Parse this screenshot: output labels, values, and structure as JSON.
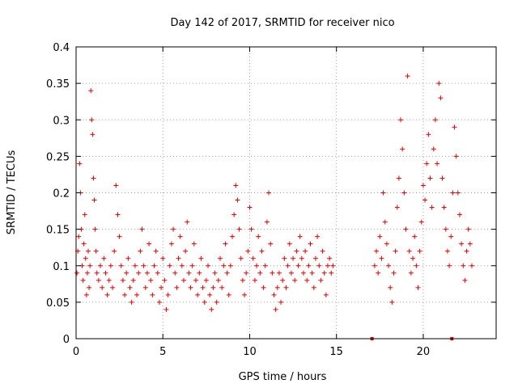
{
  "chart_data": {
    "type": "scatter",
    "title": "Day 142 of 2017, SRMTID for receiver nico",
    "xlabel": "GPS time / hours",
    "ylabel": "SRMTID / TECUs",
    "xlim": [
      0,
      24.2
    ],
    "ylim": [
      0,
      0.4
    ],
    "grid": true,
    "marker": "+",
    "color": "#e00000",
    "x_ticks": [
      0,
      5,
      10,
      15,
      20
    ],
    "x_tick_labels": [
      "0",
      "5",
      "10",
      "15",
      "20"
    ],
    "y_ticks": [
      0,
      0.05,
      0.1,
      0.15,
      0.2,
      0.25,
      0.3,
      0.35,
      0.4
    ],
    "y_tick_labels": [
      "0",
      "0.05",
      "0.1",
      "0.15",
      "0.2",
      "0.25",
      "0.3",
      "0.35",
      "0.4"
    ],
    "zero_markers_x": [
      17.05,
      21.65
    ],
    "series": [
      {
        "name": "SRMTID",
        "points": [
          [
            0.05,
            0.09
          ],
          [
            0.1,
            0.12
          ],
          [
            0.15,
            0.14
          ],
          [
            0.2,
            0.24
          ],
          [
            0.25,
            0.2
          ],
          [
            0.3,
            0.15
          ],
          [
            0.35,
            0.1
          ],
          [
            0.4,
            0.08
          ],
          [
            0.45,
            0.13
          ],
          [
            0.5,
            0.17
          ],
          [
            0.55,
            0.11
          ],
          [
            0.6,
            0.06
          ],
          [
            0.65,
            0.09
          ],
          [
            0.7,
            0.12
          ],
          [
            0.75,
            0.07
          ],
          [
            0.8,
            0.1
          ],
          [
            0.85,
            0.34
          ],
          [
            0.9,
            0.3
          ],
          [
            0.95,
            0.28
          ],
          [
            1.0,
            0.22
          ],
          [
            1.05,
            0.19
          ],
          [
            1.1,
            0.15
          ],
          [
            1.15,
            0.12
          ],
          [
            1.2,
            0.09
          ],
          [
            1.3,
            0.08
          ],
          [
            1.4,
            0.1
          ],
          [
            1.5,
            0.07
          ],
          [
            1.6,
            0.11
          ],
          [
            1.7,
            0.09
          ],
          [
            1.8,
            0.06
          ],
          [
            1.9,
            0.08
          ],
          [
            2.0,
            0.1
          ],
          [
            2.1,
            0.07
          ],
          [
            2.2,
            0.12
          ],
          [
            2.3,
            0.21
          ],
          [
            2.4,
            0.17
          ],
          [
            2.5,
            0.14
          ],
          [
            2.6,
            0.1
          ],
          [
            2.7,
            0.08
          ],
          [
            2.8,
            0.06
          ],
          [
            2.9,
            0.09
          ],
          [
            3.0,
            0.11
          ],
          [
            3.1,
            0.07
          ],
          [
            3.2,
            0.05
          ],
          [
            3.3,
            0.08
          ],
          [
            3.4,
            0.1
          ],
          [
            3.5,
            0.06
          ],
          [
            3.6,
            0.09
          ],
          [
            3.7,
            0.12
          ],
          [
            3.8,
            0.15
          ],
          [
            3.9,
            0.1
          ],
          [
            4.0,
            0.07
          ],
          [
            4.1,
            0.09
          ],
          [
            4.2,
            0.13
          ],
          [
            4.3,
            0.08
          ],
          [
            4.4,
            0.06
          ],
          [
            4.5,
            0.1
          ],
          [
            4.6,
            0.12
          ],
          [
            4.7,
            0.09
          ],
          [
            4.8,
            0.05
          ],
          [
            4.9,
            0.07
          ],
          [
            5.0,
            0.11
          ],
          [
            5.1,
            0.08
          ],
          [
            5.2,
            0.04
          ],
          [
            5.3,
            0.06
          ],
          [
            5.4,
            0.1
          ],
          [
            5.5,
            0.13
          ],
          [
            5.6,
            0.15
          ],
          [
            5.7,
            0.09
          ],
          [
            5.8,
            0.07
          ],
          [
            5.9,
            0.11
          ],
          [
            6.0,
            0.14
          ],
          [
            6.1,
            0.1
          ],
          [
            6.2,
            0.08
          ],
          [
            6.3,
            0.12
          ],
          [
            6.4,
            0.16
          ],
          [
            6.5,
            0.09
          ],
          [
            6.6,
            0.07
          ],
          [
            6.7,
            0.1
          ],
          [
            6.8,
            0.13
          ],
          [
            6.9,
            0.08
          ],
          [
            7.0,
            0.06
          ],
          [
            7.1,
            0.09
          ],
          [
            7.2,
            0.11
          ],
          [
            7.3,
            0.07
          ],
          [
            7.4,
            0.05
          ],
          [
            7.5,
            0.08
          ],
          [
            7.6,
            0.1
          ],
          [
            7.7,
            0.06
          ],
          [
            7.8,
            0.04
          ],
          [
            7.9,
            0.07
          ],
          [
            8.0,
            0.09
          ],
          [
            8.1,
            0.05
          ],
          [
            8.2,
            0.08
          ],
          [
            8.3,
            0.11
          ],
          [
            8.4,
            0.07
          ],
          [
            8.5,
            0.1
          ],
          [
            8.6,
            0.13
          ],
          [
            8.7,
            0.09
          ],
          [
            8.8,
            0.06
          ],
          [
            8.9,
            0.1
          ],
          [
            9.0,
            0.14
          ],
          [
            9.1,
            0.17
          ],
          [
            9.2,
            0.21
          ],
          [
            9.3,
            0.19
          ],
          [
            9.4,
            0.15
          ],
          [
            9.5,
            0.11
          ],
          [
            9.6,
            0.08
          ],
          [
            9.7,
            0.06
          ],
          [
            9.8,
            0.09
          ],
          [
            9.9,
            0.12
          ],
          [
            10.0,
            0.18
          ],
          [
            10.1,
            0.15
          ],
          [
            10.2,
            0.11
          ],
          [
            10.3,
            0.08
          ],
          [
            10.4,
            0.1
          ],
          [
            10.5,
            0.14
          ],
          [
            10.6,
            0.09
          ],
          [
            10.7,
            0.12
          ],
          [
            10.8,
            0.07
          ],
          [
            10.9,
            0.1
          ],
          [
            11.0,
            0.16
          ],
          [
            11.1,
            0.2
          ],
          [
            11.2,
            0.13
          ],
          [
            11.3,
            0.09
          ],
          [
            11.4,
            0.06
          ],
          [
            11.5,
            0.04
          ],
          [
            11.6,
            0.07
          ],
          [
            11.7,
            0.09
          ],
          [
            11.8,
            0.05
          ],
          [
            11.9,
            0.08
          ],
          [
            12.0,
            0.11
          ],
          [
            12.1,
            0.07
          ],
          [
            12.2,
            0.1
          ],
          [
            12.3,
            0.13
          ],
          [
            12.4,
            0.09
          ],
          [
            12.5,
            0.11
          ],
          [
            12.6,
            0.08
          ],
          [
            12.7,
            0.12
          ],
          [
            12.8,
            0.1
          ],
          [
            12.9,
            0.14
          ],
          [
            13.0,
            0.11
          ],
          [
            13.1,
            0.09
          ],
          [
            13.2,
            0.12
          ],
          [
            13.3,
            0.08
          ],
          [
            13.4,
            0.1
          ],
          [
            13.5,
            0.13
          ],
          [
            13.6,
            0.09
          ],
          [
            13.7,
            0.07
          ],
          [
            13.8,
            0.11
          ],
          [
            13.9,
            0.14
          ],
          [
            14.0,
            0.1
          ],
          [
            14.1,
            0.08
          ],
          [
            14.2,
            0.12
          ],
          [
            14.3,
            0.09
          ],
          [
            14.4,
            0.06
          ],
          [
            14.5,
            0.1
          ],
          [
            14.6,
            0.11
          ],
          [
            14.7,
            0.09
          ],
          [
            14.8,
            0.1
          ],
          [
            17.2,
            0.1
          ],
          [
            17.3,
            0.12
          ],
          [
            17.4,
            0.09
          ],
          [
            17.5,
            0.14
          ],
          [
            17.6,
            0.11
          ],
          [
            17.7,
            0.2
          ],
          [
            17.8,
            0.16
          ],
          [
            17.9,
            0.13
          ],
          [
            18.0,
            0.1
          ],
          [
            18.1,
            0.07
          ],
          [
            18.2,
            0.05
          ],
          [
            18.3,
            0.09
          ],
          [
            18.4,
            0.12
          ],
          [
            18.5,
            0.18
          ],
          [
            18.6,
            0.22
          ],
          [
            18.7,
            0.3
          ],
          [
            18.8,
            0.26
          ],
          [
            18.9,
            0.2
          ],
          [
            19.0,
            0.15
          ],
          [
            19.1,
            0.36
          ],
          [
            19.2,
            0.12
          ],
          [
            19.3,
            0.09
          ],
          [
            19.4,
            0.11
          ],
          [
            19.5,
            0.14
          ],
          [
            19.6,
            0.1
          ],
          [
            19.7,
            0.07
          ],
          [
            19.8,
            0.12
          ],
          [
            19.9,
            0.16
          ],
          [
            20.0,
            0.21
          ],
          [
            20.1,
            0.19
          ],
          [
            20.2,
            0.24
          ],
          [
            20.3,
            0.28
          ],
          [
            20.4,
            0.22
          ],
          [
            20.5,
            0.18
          ],
          [
            20.6,
            0.26
          ],
          [
            20.7,
            0.3
          ],
          [
            20.8,
            0.24
          ],
          [
            20.9,
            0.35
          ],
          [
            21.0,
            0.33
          ],
          [
            21.1,
            0.22
          ],
          [
            21.2,
            0.18
          ],
          [
            21.3,
            0.15
          ],
          [
            21.4,
            0.12
          ],
          [
            21.5,
            0.1
          ],
          [
            21.6,
            0.14
          ],
          [
            21.7,
            0.2
          ],
          [
            21.8,
            0.29
          ],
          [
            21.9,
            0.25
          ],
          [
            22.0,
            0.2
          ],
          [
            22.1,
            0.17
          ],
          [
            22.2,
            0.13
          ],
          [
            22.3,
            0.1
          ],
          [
            22.4,
            0.08
          ],
          [
            22.5,
            0.12
          ],
          [
            22.6,
            0.15
          ],
          [
            22.7,
            0.13
          ],
          [
            22.8,
            0.1
          ]
        ]
      }
    ]
  }
}
